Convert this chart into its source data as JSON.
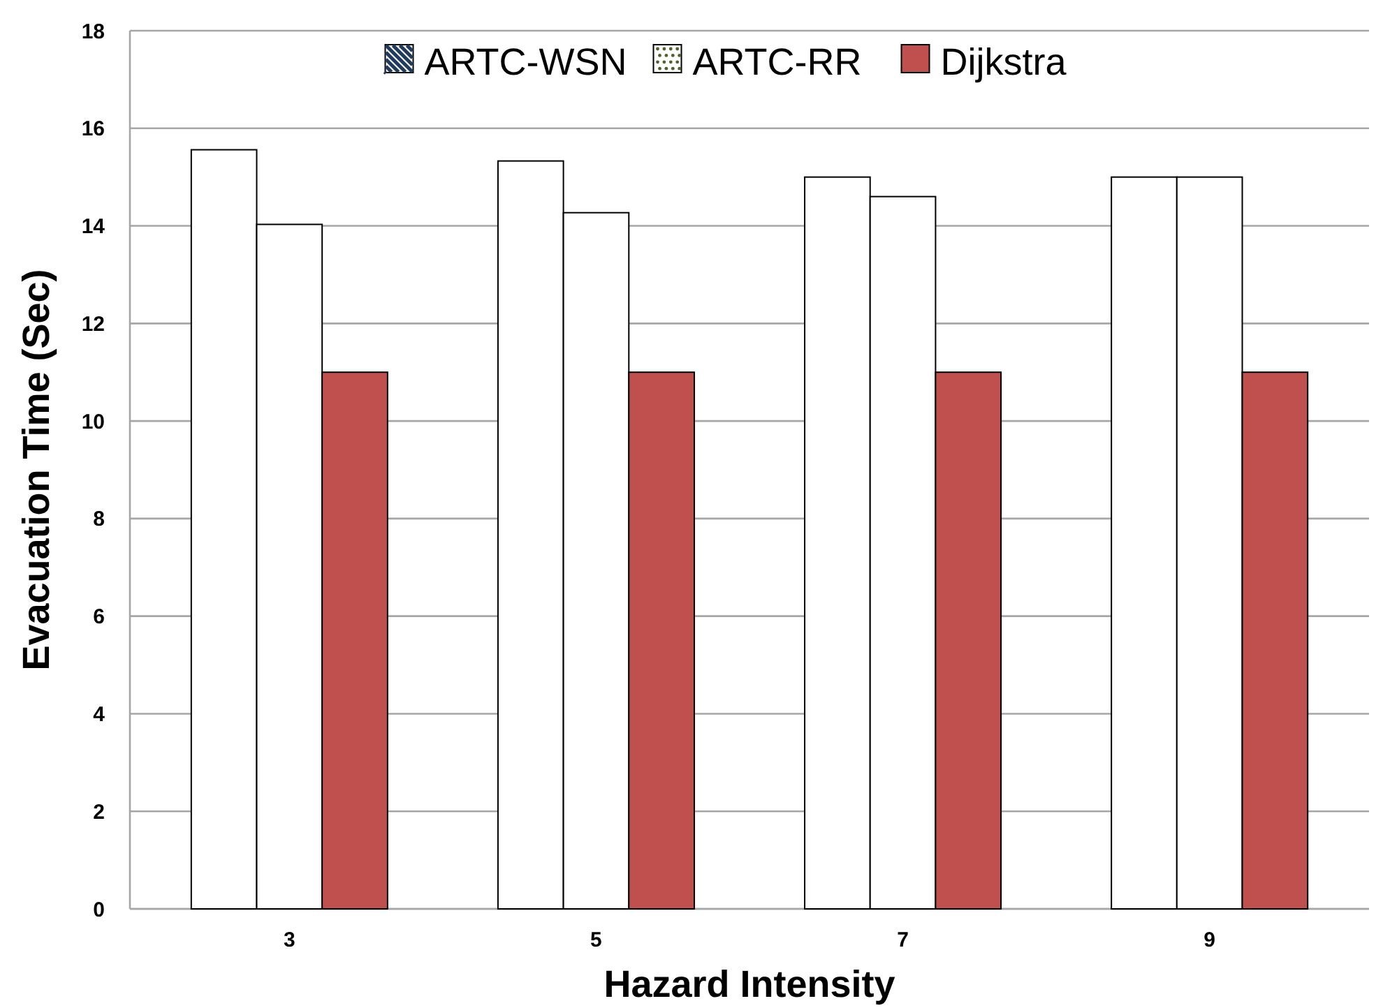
{
  "chart_data": {
    "type": "bar",
    "xlabel": "Hazard Intensity",
    "ylabel": "Evacuation Time (Sec)",
    "categories": [
      "3",
      "5",
      "7",
      "9"
    ],
    "series": [
      {
        "name": "ARTC-WSN",
        "color": "#ffffff",
        "values": [
          15.56,
          15.33,
          15.0,
          15.0
        ]
      },
      {
        "name": "ARTC-RR",
        "color": "#ffffff",
        "values": [
          14.03,
          14.27,
          14.6,
          15.0
        ]
      },
      {
        "name": "Dijkstra",
        "color": "#c0504d",
        "values": [
          11.0,
          11.0,
          11.0,
          11.0
        ]
      }
    ],
    "ylim": [
      0,
      18
    ],
    "yticks": [
      0,
      2,
      4,
      6,
      8,
      10,
      12,
      14,
      16,
      18
    ],
    "grid": "y",
    "legend": "top"
  }
}
